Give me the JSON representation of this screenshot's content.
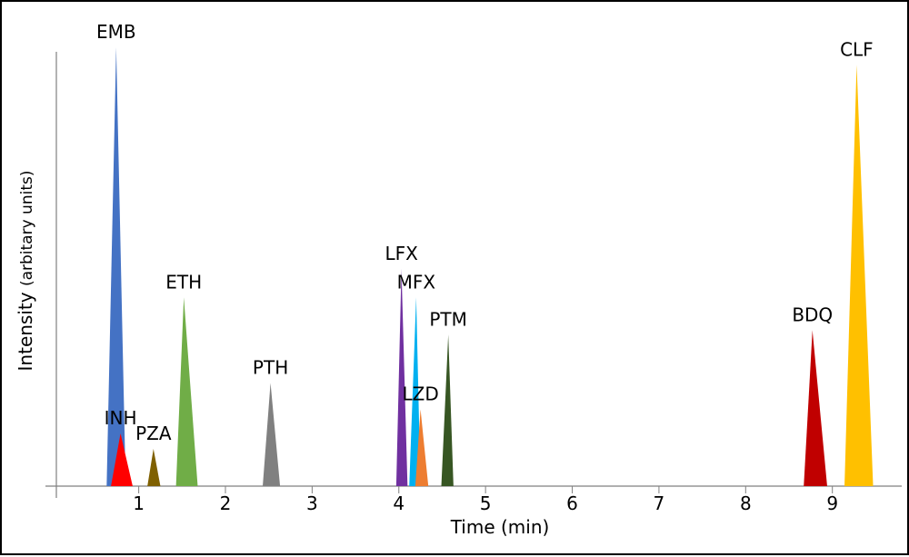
{
  "chart_data": {
    "type": "area",
    "title": "",
    "xlabel": "Time (min)",
    "ylabel_main": "Intensity",
    "ylabel_sub": "(arbitary units)",
    "xlim": [
      0.05,
      9.8
    ],
    "ylim": [
      0,
      100
    ],
    "x_ticks": [
      1,
      2,
      3,
      4,
      5,
      6,
      7,
      8,
      9
    ],
    "x_tick_labels": [
      "1",
      "2",
      "3",
      "4",
      "5",
      "6",
      "7",
      "8",
      "9"
    ],
    "grid": false,
    "legend": "none",
    "series": [
      {
        "name": "EMB",
        "center": 0.74,
        "start": 0.63,
        "end": 0.85,
        "height": 100,
        "color": "#4472C4"
      },
      {
        "name": "INH",
        "center": 0.79,
        "start": 0.68,
        "end": 0.93,
        "height": 12,
        "color": "#FF0000"
      },
      {
        "name": "PZA",
        "center": 1.17,
        "start": 1.1,
        "end": 1.25,
        "height": 8.5,
        "color": "#7F6000"
      },
      {
        "name": "ETH",
        "center": 1.52,
        "start": 1.43,
        "end": 1.68,
        "height": 43,
        "color": "#70AD47"
      },
      {
        "name": "PTH",
        "center": 2.52,
        "start": 2.43,
        "end": 2.63,
        "height": 23.5,
        "color": "#808080"
      },
      {
        "name": "LFX",
        "center": 4.03,
        "start": 3.97,
        "end": 4.1,
        "height": 49.5,
        "color": "#7030A0"
      },
      {
        "name": "MFX",
        "center": 4.2,
        "start": 4.12,
        "end": 4.25,
        "height": 43,
        "color": "#00B0F0"
      },
      {
        "name": "LZD",
        "center": 4.25,
        "start": 4.19,
        "end": 4.34,
        "height": 17.5,
        "color": "#ED7D31"
      },
      {
        "name": "PTM",
        "center": 4.57,
        "start": 4.49,
        "end": 4.63,
        "height": 34.5,
        "color": "#375623"
      },
      {
        "name": "BDQ",
        "center": 8.77,
        "start": 8.67,
        "end": 8.94,
        "height": 35.5,
        "color": "#C00000"
      },
      {
        "name": "CLF",
        "center": 9.28,
        "start": 9.14,
        "end": 9.47,
        "height": 96,
        "color": "#FFC000"
      }
    ]
  }
}
